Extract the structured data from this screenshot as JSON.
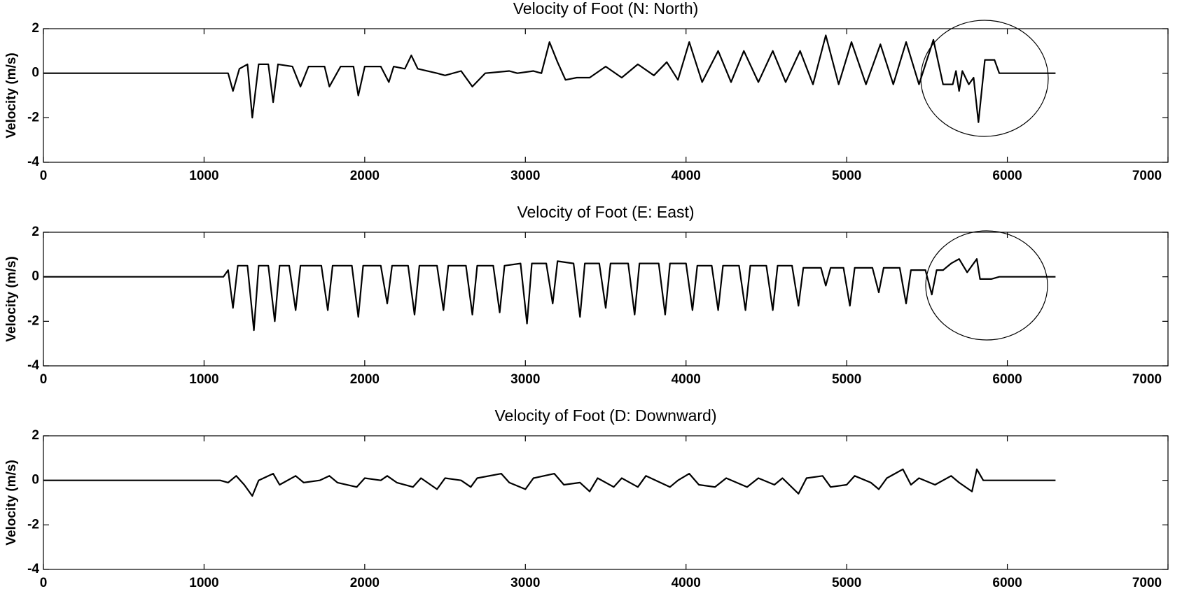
{
  "chart_data": [
    {
      "type": "line",
      "title": "Velocity of Foot (N: North)",
      "ylabel": "Velocity (m/s)",
      "color": "#000000",
      "xlim": [
        0,
        7000
      ],
      "ylim": [
        -4,
        2
      ],
      "xticks": [
        0,
        1000,
        2000,
        3000,
        4000,
        5000,
        6000,
        7000
      ],
      "yticks": [
        -4,
        -2,
        0,
        2
      ],
      "x": [
        0,
        1150,
        1180,
        1220,
        1270,
        1300,
        1340,
        1400,
        1430,
        1460,
        1550,
        1600,
        1650,
        1750,
        1780,
        1850,
        1930,
        1960,
        2000,
        2100,
        2150,
        2180,
        2250,
        2290,
        2330,
        2450,
        2500,
        2600,
        2670,
        2750,
        2900,
        2950,
        3050,
        3100,
        3150,
        3200,
        3250,
        3320,
        3400,
        3500,
        3600,
        3700,
        3800,
        3880,
        3950,
        4020,
        4100,
        4200,
        4280,
        4360,
        4450,
        4540,
        4620,
        4710,
        4790,
        4870,
        4950,
        5030,
        5120,
        5210,
        5290,
        5370,
        5450,
        5540,
        5600,
        5660,
        5680,
        5700,
        5720,
        5760,
        5790,
        5820,
        5860,
        5920,
        5950,
        6300
      ],
      "values": [
        0,
        0,
        -0.8,
        0.2,
        0.4,
        -2,
        0.4,
        0.4,
        -1.3,
        0.4,
        0.3,
        -0.6,
        0.3,
        0.3,
        -0.6,
        0.3,
        0.3,
        -1,
        0.3,
        0.3,
        -0.4,
        0.3,
        0.2,
        0.8,
        0.2,
        0,
        -0.1,
        0.1,
        -0.6,
        0,
        0.1,
        0,
        0.1,
        0,
        1.4,
        0.5,
        -0.3,
        -0.2,
        -0.2,
        0.3,
        -0.2,
        0.4,
        -0.1,
        0.5,
        -0.3,
        1.4,
        -0.4,
        1,
        -0.4,
        1,
        -0.4,
        1,
        -0.4,
        1,
        -0.5,
        1.7,
        -0.5,
        1.4,
        -0.5,
        1.3,
        -0.5,
        1.4,
        -0.5,
        1.5,
        -0.5,
        -0.5,
        0.1,
        -0.8,
        0.1,
        -0.5,
        -0.2,
        -2.2,
        0.6,
        0.6,
        0,
        0
      ]
    },
    {
      "type": "line",
      "title": "Velocity of Foot (E: East)",
      "ylabel": "Velocity (m/s)",
      "color": "#000000",
      "xlim": [
        0,
        7000
      ],
      "ylim": [
        -4,
        2
      ],
      "xticks": [
        0,
        1000,
        2000,
        3000,
        4000,
        5000,
        6000,
        7000
      ],
      "yticks": [
        -4,
        -2,
        0,
        2
      ],
      "x": [
        0,
        1120,
        1150,
        1180,
        1210,
        1270,
        1310,
        1340,
        1400,
        1440,
        1470,
        1530,
        1570,
        1600,
        1730,
        1770,
        1800,
        1920,
        1960,
        1990,
        2100,
        2140,
        2170,
        2270,
        2310,
        2340,
        2450,
        2490,
        2520,
        2630,
        2670,
        2700,
        2800,
        2840,
        2870,
        2970,
        3010,
        3040,
        3130,
        3170,
        3200,
        3300,
        3340,
        3370,
        3460,
        3500,
        3530,
        3640,
        3680,
        3710,
        3830,
        3870,
        3900,
        4000,
        4040,
        4070,
        4160,
        4200,
        4230,
        4330,
        4370,
        4400,
        4500,
        4540,
        4570,
        4660,
        4700,
        4730,
        4840,
        4870,
        4900,
        4980,
        5020,
        5050,
        5160,
        5200,
        5230,
        5330,
        5370,
        5400,
        5490,
        5530,
        5560,
        5600,
        5650,
        5700,
        5750,
        5810,
        5830,
        5900,
        5950,
        6300
      ],
      "values": [
        0,
        0,
        0.3,
        -1.4,
        0.5,
        0.5,
        -2.4,
        0.5,
        0.5,
        -2,
        0.5,
        0.5,
        -1.5,
        0.5,
        0.5,
        -1.5,
        0.5,
        0.5,
        -1.8,
        0.5,
        0.5,
        -1.2,
        0.5,
        0.5,
        -1.7,
        0.5,
        0.5,
        -1.5,
        0.5,
        0.5,
        -1.7,
        0.5,
        0.5,
        -1.6,
        0.5,
        0.6,
        -2.1,
        0.6,
        0.6,
        -1.2,
        0.7,
        0.6,
        -1.8,
        0.6,
        0.6,
        -1.4,
        0.6,
        0.6,
        -1.7,
        0.6,
        0.6,
        -1.7,
        0.6,
        0.6,
        -1.5,
        0.5,
        0.5,
        -1.5,
        0.5,
        0.5,
        -1.5,
        0.5,
        0.5,
        -1.5,
        0.5,
        0.5,
        -1.3,
        0.4,
        0.4,
        -0.4,
        0.4,
        0.4,
        -1.3,
        0.4,
        0.4,
        -0.7,
        0.4,
        0.4,
        -1.2,
        0.3,
        0.3,
        -0.8,
        0.3,
        0.3,
        0.6,
        0.8,
        0.2,
        0.8,
        -0.1,
        -0.1,
        0,
        0
      ]
    },
    {
      "type": "line",
      "title": "Velocity of Foot (D: Downward)",
      "ylabel": "Velocity (m/s)",
      "color": "#000000",
      "xlim": [
        0,
        7000
      ],
      "ylim": [
        -4,
        2
      ],
      "xticks": [
        0,
        1000,
        2000,
        3000,
        4000,
        5000,
        6000,
        7000
      ],
      "yticks": [
        -4,
        -2,
        0,
        2
      ],
      "x": [
        0,
        1100,
        1150,
        1200,
        1250,
        1300,
        1340,
        1430,
        1470,
        1570,
        1620,
        1720,
        1780,
        1830,
        1950,
        2000,
        2100,
        2140,
        2200,
        2300,
        2350,
        2450,
        2500,
        2600,
        2660,
        2700,
        2850,
        2900,
        3000,
        3050,
        3180,
        3240,
        3340,
        3400,
        3450,
        3550,
        3600,
        3700,
        3750,
        3900,
        3950,
        4020,
        4080,
        4180,
        4250,
        4380,
        4450,
        4550,
        4600,
        4700,
        4750,
        4850,
        4900,
        5000,
        5050,
        5150,
        5200,
        5250,
        5350,
        5400,
        5450,
        5550,
        5650,
        5700,
        5780,
        5810,
        5850,
        6300
      ],
      "values": [
        0,
        0,
        -0.1,
        0.2,
        -0.2,
        -0.7,
        0,
        0.3,
        -0.2,
        0.2,
        -0.1,
        0,
        0.2,
        -0.1,
        -0.3,
        0.1,
        0,
        0.2,
        -0.1,
        -0.3,
        0.1,
        -0.4,
        0.1,
        0,
        -0.3,
        0.1,
        0.3,
        -0.1,
        -0.4,
        0.1,
        0.3,
        -0.2,
        -0.1,
        -0.5,
        0.1,
        -0.3,
        0.1,
        -0.3,
        0.2,
        -0.3,
        0,
        0.3,
        -0.2,
        -0.3,
        0.1,
        -0.3,
        0.1,
        -0.2,
        0.1,
        -0.6,
        0.1,
        0.2,
        -0.3,
        -0.2,
        0.2,
        -0.1,
        -0.4,
        0.1,
        0.5,
        -0.2,
        0.1,
        -0.2,
        0.2,
        -0.1,
        -0.5,
        0.5,
        0,
        0
      ]
    }
  ]
}
